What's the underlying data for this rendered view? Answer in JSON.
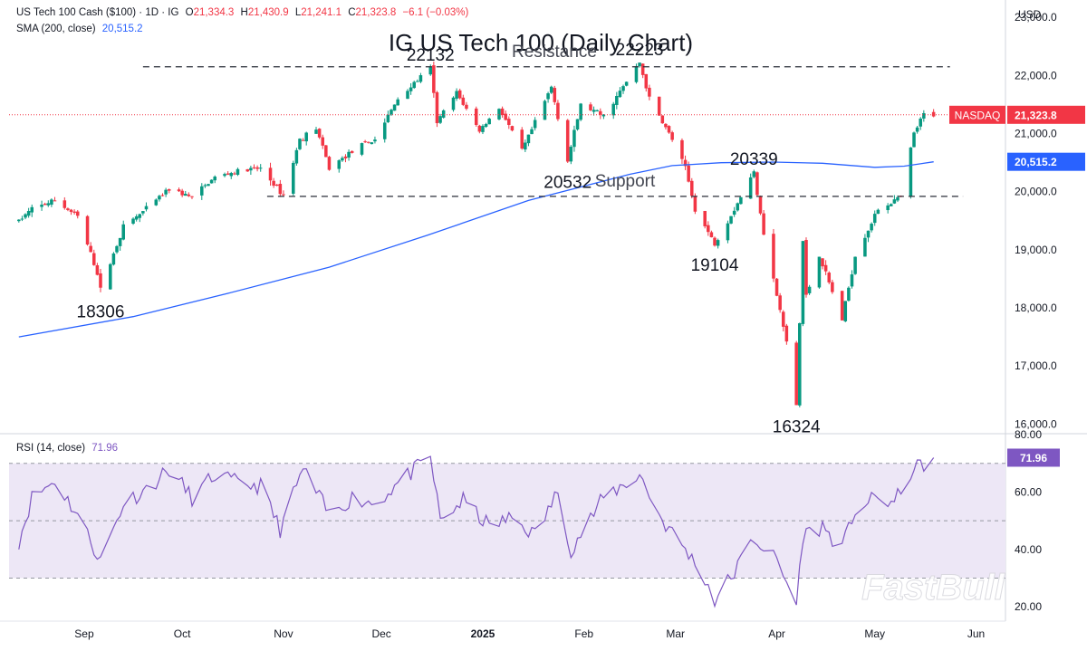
{
  "legend": {
    "symbol": "US Tech 100 Cash ($100) · 1D · IG",
    "o_label": "O",
    "o": "21,334.3",
    "h_label": "H",
    "h": "21,430.9",
    "l_label": "L",
    "l": "21,241.1",
    "c_label": "C",
    "c": "21,323.8",
    "change": "−6.1 (−0.03%)",
    "sma_label": "SMA (200, close)",
    "sma_value": "20,515.2",
    "rsi_label": "RSI (14, close)",
    "rsi_value": "71.96"
  },
  "currency": "USD",
  "watermark": "FastBull",
  "colors": {
    "up": "#089981",
    "down": "#f23645",
    "sma": "#2962ff",
    "rsi": "#7e57c2",
    "rsi_band": "#ede7f6",
    "axis_text": "#131722"
  },
  "chart_data": [
    {
      "type": "candlestick",
      "title": "IG US Tech 100 (Daily Chart)",
      "instrument": "NASDAQ",
      "last_price": 21323.8,
      "last_price_label": "21,323.8",
      "sma_label_value": "20,515.2",
      "x_ticks": [
        "Sep",
        "Oct",
        "Nov",
        "Dec",
        "2025",
        "Feb",
        "Mar",
        "Apr",
        "May",
        "Jun"
      ],
      "y_ticks": [
        "16,000.0",
        "17,000.0",
        "18,000.0",
        "19,000.0",
        "20,000.0",
        "21,000.0",
        "22,000.0",
        "23,000.0"
      ],
      "ylim": [
        15850,
        23300
      ],
      "close_path": [
        [
          "2024-08-12",
          19500
        ],
        [
          "2024-08-16",
          19700
        ],
        [
          "2024-08-23",
          19850
        ],
        [
          "2024-08-30",
          19570
        ],
        [
          "2024-09-05",
          18600
        ],
        [
          "2024-09-06",
          18306
        ],
        [
          "2024-09-13",
          19400
        ],
        [
          "2024-09-20",
          19700
        ],
        [
          "2024-09-27",
          20050
        ],
        [
          "2024-10-04",
          19900
        ],
        [
          "2024-10-11",
          20250
        ],
        [
          "2024-10-18",
          20350
        ],
        [
          "2024-10-25",
          20400
        ],
        [
          "2024-10-31",
          20000
        ],
        [
          "2024-11-01",
          19950
        ],
        [
          "2024-11-06",
          20900
        ],
        [
          "2024-11-11",
          21100
        ],
        [
          "2024-11-15",
          20400
        ],
        [
          "2024-11-22",
          20700
        ],
        [
          "2024-11-29",
          20900
        ],
        [
          "2024-12-06",
          21600
        ],
        [
          "2024-12-16",
          22132
        ],
        [
          "2024-12-18",
          21200
        ],
        [
          "2024-12-24",
          21700
        ],
        [
          "2024-12-31",
          21050
        ],
        [
          "2025-01-06",
          21450
        ],
        [
          "2025-01-13",
          20700
        ],
        [
          "2025-01-22",
          21800
        ],
        [
          "2025-01-27",
          20532
        ],
        [
          "2025-01-31",
          21500
        ],
        [
          "2025-02-07",
          21300
        ],
        [
          "2025-02-18",
          22223
        ],
        [
          "2025-02-21",
          21600
        ],
        [
          "2025-02-28",
          20900
        ],
        [
          "2025-03-04",
          20400
        ],
        [
          "2025-03-07",
          19700
        ],
        [
          "2025-03-13",
          19104
        ],
        [
          "2025-03-19",
          19700
        ],
        [
          "2025-03-25",
          20339
        ],
        [
          "2025-03-28",
          19300
        ],
        [
          "2025-04-04",
          17400
        ],
        [
          "2025-04-07",
          16324
        ],
        [
          "2025-04-09",
          19150
        ],
        [
          "2025-04-10",
          18200
        ],
        [
          "2025-04-14",
          18900
        ],
        [
          "2025-04-21",
          17800
        ],
        [
          "2025-04-25",
          18900
        ],
        [
          "2025-05-02",
          19700
        ],
        [
          "2025-05-09",
          19900
        ],
        [
          "2025-05-13",
          21000
        ],
        [
          "2025-05-16",
          21330
        ],
        [
          "2025-05-19",
          21323.8
        ]
      ],
      "sma_200": [
        [
          "2024-08-12",
          17500
        ],
        [
          "2024-09-16",
          17850
        ],
        [
          "2024-10-15",
          18250
        ],
        [
          "2024-11-15",
          18700
        ],
        [
          "2024-12-15",
          19250
        ],
        [
          "2025-01-15",
          19850
        ],
        [
          "2025-02-15",
          20300
        ],
        [
          "2025-02-28",
          20450
        ],
        [
          "2025-03-15",
          20500
        ],
        [
          "2025-03-31",
          20510
        ],
        [
          "2025-04-15",
          20490
        ],
        [
          "2025-05-01",
          20420
        ],
        [
          "2025-05-10",
          20440
        ],
        [
          "2025-05-19",
          20515.2
        ]
      ],
      "levels": [
        {
          "label": "Resistance",
          "value": 22150
        },
        {
          "label": "Support",
          "value": 19920
        }
      ],
      "annotations": [
        {
          "text": "18306",
          "date": "2024-09-06",
          "value": 18306,
          "pos": "below"
        },
        {
          "text": "22132",
          "date": "2024-12-16",
          "value": 22132,
          "pos": "above"
        },
        {
          "text": "20532",
          "date": "2025-01-27",
          "value": 20532,
          "pos": "below"
        },
        {
          "text": "22223",
          "date": "2025-02-18",
          "value": 22223,
          "pos": "above"
        },
        {
          "text": "19104",
          "date": "2025-03-13",
          "value": 19104,
          "pos": "below"
        },
        {
          "text": "20339",
          "date": "2025-03-25",
          "value": 20339,
          "pos": "above"
        },
        {
          "text": "16324",
          "date": "2025-04-07",
          "value": 16324,
          "pos": "below"
        }
      ]
    },
    {
      "type": "line",
      "name": "RSI (14, close)",
      "y_ticks": [
        "20.00",
        "40.00",
        "60.00",
        "80.00"
      ],
      "ylim": [
        15,
        80
      ],
      "bands": [
        30,
        50,
        70
      ],
      "last_value": 71.96,
      "last_value_label": "71.96",
      "points": [
        [
          "2024-08-12",
          43
        ],
        [
          "2024-08-16",
          58
        ],
        [
          "2024-08-23",
          64
        ],
        [
          "2024-08-30",
          52
        ],
        [
          "2024-09-06",
          36
        ],
        [
          "2024-09-13",
          56
        ],
        [
          "2024-09-20",
          61
        ],
        [
          "2024-09-27",
          68
        ],
        [
          "2024-10-04",
          58
        ],
        [
          "2024-10-11",
          66
        ],
        [
          "2024-10-18",
          63
        ],
        [
          "2024-10-25",
          62
        ],
        [
          "2024-10-31",
          47
        ],
        [
          "2024-11-07",
          68
        ],
        [
          "2024-11-15",
          52
        ],
        [
          "2024-11-22",
          58
        ],
        [
          "2024-11-29",
          56
        ],
        [
          "2024-12-06",
          63
        ],
        [
          "2024-12-16",
          72
        ],
        [
          "2024-12-19",
          50
        ],
        [
          "2024-12-26",
          57
        ],
        [
          "2025-01-03",
          48
        ],
        [
          "2025-01-10",
          51
        ],
        [
          "2025-01-17",
          45
        ],
        [
          "2025-01-24",
          60
        ],
        [
          "2025-01-28",
          40
        ],
        [
          "2025-02-07",
          58
        ],
        [
          "2025-02-18",
          66
        ],
        [
          "2025-02-25",
          50
        ],
        [
          "2025-03-04",
          40
        ],
        [
          "2025-03-10",
          30
        ],
        [
          "2025-03-13",
          22
        ],
        [
          "2025-03-19",
          32
        ],
        [
          "2025-03-25",
          44
        ],
        [
          "2025-04-01",
          36
        ],
        [
          "2025-04-07",
          21
        ],
        [
          "2025-04-09",
          45
        ],
        [
          "2025-04-15",
          48
        ],
        [
          "2025-04-21",
          40
        ],
        [
          "2025-04-25",
          54
        ],
        [
          "2025-05-02",
          58
        ],
        [
          "2025-05-07",
          56
        ],
        [
          "2025-05-12",
          67
        ],
        [
          "2025-05-19",
          71.96
        ]
      ]
    }
  ]
}
